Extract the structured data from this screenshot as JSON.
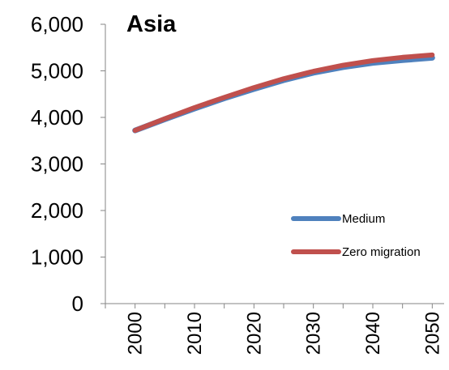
{
  "chart_data": {
    "type": "line",
    "title": "Asia",
    "xlabel": "",
    "ylabel": "",
    "x": [
      2000,
      2005,
      2010,
      2015,
      2020,
      2025,
      2030,
      2035,
      2040,
      2045,
      2050
    ],
    "x_ticks": [
      "2000",
      "2010",
      "2020",
      "2030",
      "2040",
      "2050"
    ],
    "y_ticks": [
      "0",
      "1,000",
      "2,000",
      "3,000",
      "4,000",
      "5,000",
      "6,000"
    ],
    "ylim": [
      0,
      6000
    ],
    "series": [
      {
        "name": "Medium",
        "color": "#4F81BD",
        "values": [
          3720,
          3960,
          4190,
          4410,
          4610,
          4800,
          4960,
          5080,
          5170,
          5230,
          5280
        ]
      },
      {
        "name": "Zero migration",
        "color": "#C0504D",
        "values": [
          3720,
          3970,
          4210,
          4430,
          4640,
          4830,
          4990,
          5120,
          5220,
          5290,
          5340
        ]
      }
    ],
    "legend_position": "bottom-right",
    "grid": false
  }
}
